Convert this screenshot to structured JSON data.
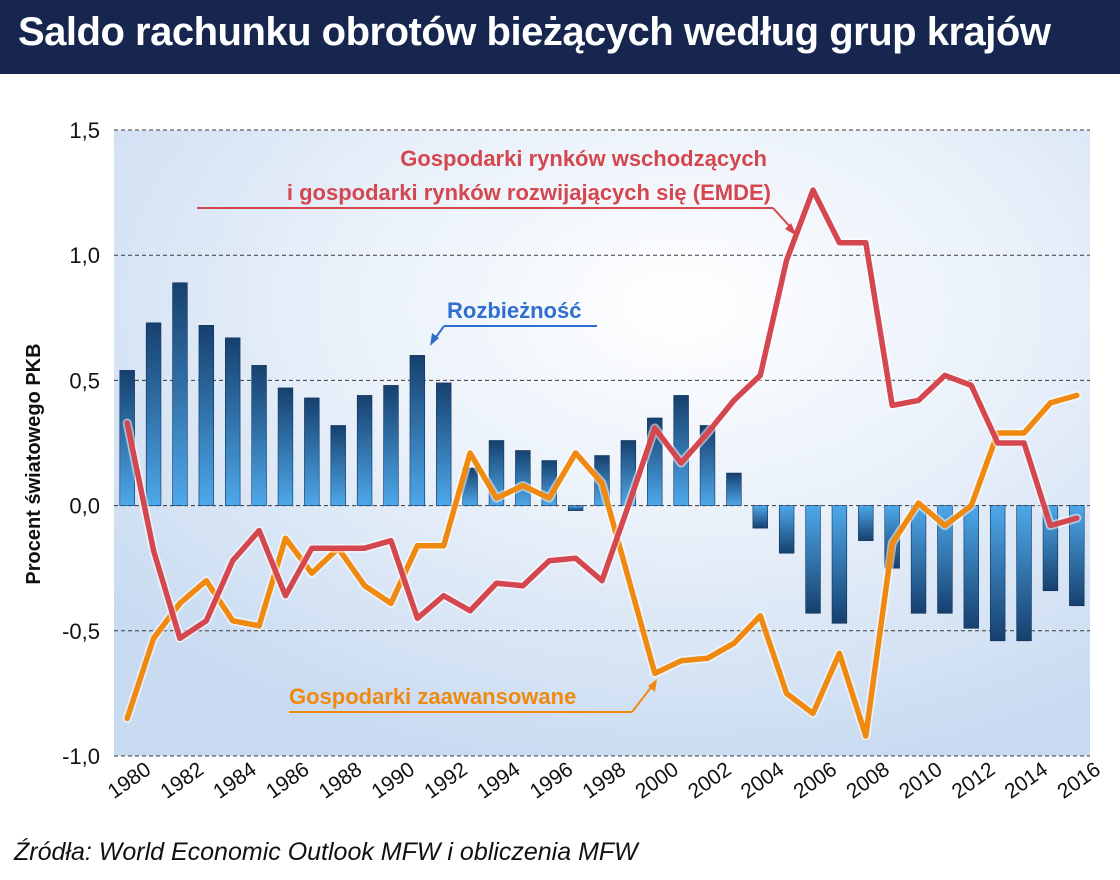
{
  "header": {
    "title": "Saldo rachunku obrotów bieżących według grup krajów"
  },
  "footer": {
    "source": "Źródła: World Economic Outlook MFW  i obliczenia MFW"
  },
  "colors": {
    "title_bg": "#16264e",
    "emde": "#d5474f",
    "advanced": "#f0890f",
    "divergence_label": "#2e6fcf",
    "bar_dark": "#16406e",
    "bar_light": "#4ea8ea"
  },
  "chart_data": {
    "type": "bar",
    "ylabel": "Procent światowego PKB",
    "xlabel": "",
    "ylim": [
      -1.0,
      1.5
    ],
    "yticks": [
      1.5,
      1.0,
      0.5,
      0.0,
      -0.5,
      -1.0
    ],
    "ytick_labels": [
      "1,5",
      "1,0",
      "0,5",
      "0,0",
      "-0,5",
      "-1,0"
    ],
    "grid": true,
    "x": [
      1980,
      1981,
      1982,
      1983,
      1984,
      1985,
      1986,
      1987,
      1988,
      1989,
      1990,
      1991,
      1992,
      1993,
      1994,
      1995,
      1996,
      1997,
      1998,
      1999,
      2000,
      2001,
      2002,
      2003,
      2004,
      2005,
      2006,
      2007,
      2008,
      2009,
      2010,
      2011,
      2012,
      2013,
      2014,
      2015,
      2016
    ],
    "xtick_labels": [
      "1980",
      "1982",
      "1984",
      "1986",
      "1988",
      "1990",
      "1992",
      "1994",
      "1996",
      "1998",
      "2000",
      "2002",
      "2004",
      "2006",
      "2008",
      "2010",
      "2012",
      "2014",
      "2016"
    ],
    "series": [
      {
        "name": "Rozbieżność",
        "type": "bar",
        "values": [
          0.54,
          0.73,
          0.89,
          0.72,
          0.67,
          0.56,
          0.47,
          0.43,
          0.32,
          0.44,
          0.48,
          0.6,
          0.49,
          0.15,
          0.26,
          0.22,
          0.18,
          -0.02,
          0.2,
          0.26,
          0.35,
          0.44,
          0.32,
          0.13,
          -0.09,
          -0.19,
          -0.43,
          -0.47,
          -0.14,
          -0.25,
          -0.43,
          -0.43,
          -0.49,
          -0.54,
          -0.54,
          -0.34,
          -0.4
        ]
      },
      {
        "name": "Gospodarki rynków wschodzących i gospodarki rynków rozwijających się (EMDE)",
        "type": "line",
        "values": [
          0.33,
          -0.18,
          -0.53,
          -0.46,
          -0.22,
          -0.1,
          -0.36,
          -0.17,
          -0.17,
          -0.17,
          -0.14,
          -0.45,
          -0.36,
          -0.42,
          -0.31,
          -0.32,
          -0.22,
          -0.21,
          -0.3,
          0.0,
          0.31,
          0.17,
          0.29,
          0.42,
          0.52,
          0.98,
          1.26,
          1.05,
          1.05,
          0.4,
          0.42,
          0.52,
          0.48,
          0.25,
          0.25,
          -0.08,
          -0.05
        ]
      },
      {
        "name": "Gospodarki zaawansowane",
        "type": "line",
        "values": [
          -0.85,
          -0.53,
          -0.39,
          -0.3,
          -0.46,
          -0.48,
          -0.13,
          -0.27,
          -0.17,
          -0.32,
          -0.39,
          -0.16,
          -0.16,
          0.21,
          0.03,
          0.08,
          0.03,
          0.21,
          0.09,
          -0.29,
          -0.67,
          -0.62,
          -0.61,
          -0.55,
          -0.44,
          -0.75,
          -0.83,
          -0.59,
          -0.92,
          -0.15,
          0.01,
          -0.08,
          0.0,
          0.29,
          0.29,
          0.41,
          0.44
        ]
      }
    ],
    "annotations": [
      {
        "text": "Gospodarki rynków wschodzących",
        "color": "#d5474f"
      },
      {
        "text": "i gospodarki rynków rozwijających się (EMDE)",
        "color": "#d5474f"
      },
      {
        "text": "Rozbieżność",
        "color": "#2e6fcf"
      },
      {
        "text": "Gospodarki zaawansowane",
        "color": "#f0890f"
      }
    ]
  }
}
